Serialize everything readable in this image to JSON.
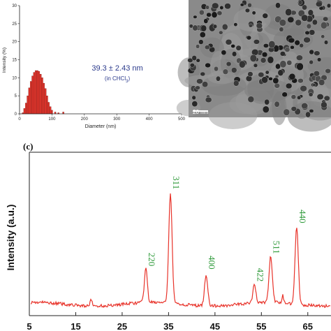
{
  "chart_data": [
    {
      "type": "bar",
      "x": [
        10,
        15,
        20,
        25,
        30,
        35,
        40,
        45,
        50,
        55,
        60,
        65,
        70,
        75,
        80,
        85,
        90,
        95,
        100,
        110,
        120,
        135
      ],
      "values": [
        0.3,
        1.5,
        3.0,
        5.0,
        7.2,
        9.0,
        10.5,
        11.5,
        12.0,
        12.0,
        11.8,
        11.0,
        10.0,
        8.5,
        7.0,
        5.0,
        3.2,
        2.0,
        1.0,
        0.5,
        0.3,
        0.5
      ],
      "xlabel": "Diameter (nm)",
      "ylabel": "Intensity (%)",
      "xlim": [
        0,
        500
      ],
      "ylim": [
        0,
        30
      ],
      "xticks": [
        "0",
        "100",
        "200",
        "300",
        "400",
        "500"
      ],
      "yticks": [
        "0",
        "5",
        "10",
        "15",
        "20",
        "25",
        "30"
      ],
      "bar_color": "#e8332a",
      "annotation": {
        "main": "39.3 ± 2.43 nm",
        "sub_prefix": "(in CHCl",
        "sub_subscript": "3",
        "sub_suffix": ")",
        "color": "#2b3a8c"
      }
    },
    {
      "type": "line",
      "panel_label": "(c)",
      "ylabel": "Intensity (a.u.)",
      "xlim": [
        5,
        70
      ],
      "xticks": [
        "5",
        "15",
        "25",
        "35",
        "45",
        "55",
        "65"
      ],
      "line_color": "#e8332a",
      "label_color": "#2f9a3a",
      "peaks": [
        {
          "label": "220",
          "x": 30.1,
          "height": 0.22,
          "width": 0.45
        },
        {
          "label": "311",
          "x": 35.4,
          "height": 0.72,
          "width": 0.5
        },
        {
          "label": "400",
          "x": 43.1,
          "height": 0.2,
          "width": 0.5
        },
        {
          "label": "422",
          "x": 53.5,
          "height": 0.12,
          "width": 0.45
        },
        {
          "label": "511",
          "x": 57.0,
          "height": 0.3,
          "width": 0.5
        },
        {
          "label": "440",
          "x": 62.6,
          "height": 0.5,
          "width": 0.5
        }
      ]
    }
  ],
  "tem": {
    "scalebar_label": "20 nm"
  }
}
